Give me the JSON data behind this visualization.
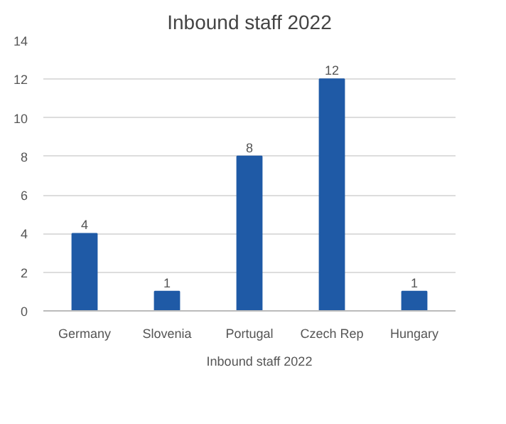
{
  "chart_data": {
    "type": "bar",
    "title": "Inbound staff 2022",
    "categories": [
      "Germany",
      "Slovenia",
      "Portugal",
      "Czech Rep",
      "Hungary"
    ],
    "series": [
      {
        "name": "Inbound staff 2022",
        "color": "#1f5aa6",
        "values": [
          4,
          1,
          8,
          12,
          1
        ]
      }
    ],
    "ylim": [
      0,
      14
    ],
    "yticks": [
      0,
      2,
      4,
      6,
      8,
      10,
      12,
      14
    ],
    "grid": "y",
    "legend": "bottom",
    "data_labels": true
  }
}
